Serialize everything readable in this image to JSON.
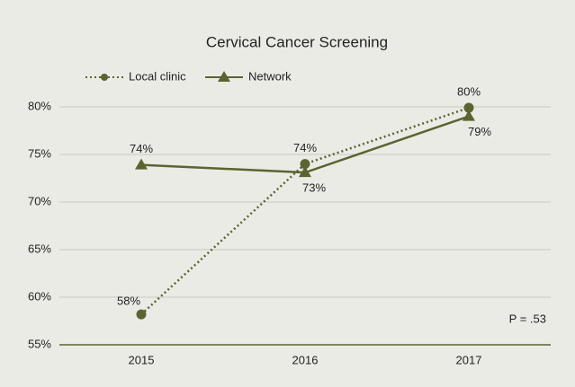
{
  "chart_data": {
    "type": "line",
    "title": "Cervical Cancer Screening",
    "categories": [
      "2015",
      "2016",
      "2017"
    ],
    "series": [
      {
        "name": "Local clinic",
        "color": "#5a6430",
        "style": "dotted",
        "marker": "circle",
        "values": [
          58.2,
          74.0,
          79.9
        ],
        "value_labels": [
          "58%",
          "74%",
          "80%"
        ]
      },
      {
        "name": "Network",
        "color": "#5a6430",
        "style": "solid",
        "marker": "triangle",
        "values": [
          73.9,
          73.1,
          79.0
        ],
        "value_labels": [
          "74%",
          "73%",
          "79%"
        ]
      }
    ],
    "ylim": [
      55,
      80
    ],
    "yticks": [
      {
        "value": 55,
        "label": "55%"
      },
      {
        "value": 60,
        "label": "60%"
      },
      {
        "value": 65,
        "label": "65%"
      },
      {
        "value": 70,
        "label": "70%"
      },
      {
        "value": 75,
        "label": "75%"
      },
      {
        "value": 80,
        "label": "80%"
      }
    ],
    "grid": true,
    "legend": "top-left",
    "annotation": "P = .53"
  }
}
